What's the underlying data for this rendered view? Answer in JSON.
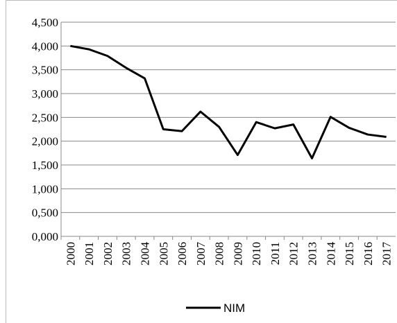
{
  "chart_data": {
    "type": "line",
    "categories": [
      "2000",
      "2001",
      "2002",
      "2003",
      "2004",
      "2005",
      "2006",
      "2007",
      "2008",
      "2009",
      "2010",
      "2011",
      "2012",
      "2013",
      "2014",
      "2015",
      "2016",
      "2017"
    ],
    "series": [
      {
        "name": "NIM",
        "color": "#000000",
        "values": [
          4.0,
          3.93,
          3.79,
          3.54,
          3.32,
          2.25,
          2.21,
          2.62,
          2.3,
          1.71,
          2.4,
          2.27,
          2.35,
          1.64,
          2.51,
          2.28,
          2.14,
          2.09
        ]
      }
    ],
    "ylim": [
      0,
      4.5
    ],
    "yticks": [
      {
        "value": 0,
        "label": "0,000"
      },
      {
        "value": 0.5,
        "label": "0,500"
      },
      {
        "value": 1,
        "label": "1,000"
      },
      {
        "value": 1.5,
        "label": "1,500"
      },
      {
        "value": 2,
        "label": "2,000"
      },
      {
        "value": 2.5,
        "label": "2,500"
      },
      {
        "value": 3,
        "label": "3,000"
      },
      {
        "value": 3.5,
        "label": "3,500"
      },
      {
        "value": 4,
        "label": "4,000"
      },
      {
        "value": 4.5,
        "label": "4,500"
      }
    ],
    "grid": true,
    "legend": "bottom"
  }
}
